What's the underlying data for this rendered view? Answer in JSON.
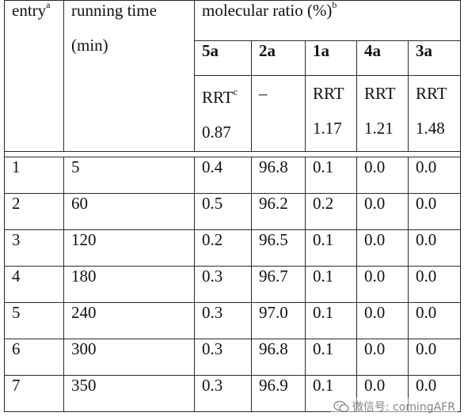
{
  "header": {
    "entry": "entry",
    "entry_sup": "a",
    "running_time_line1": "running time",
    "running_time_line2": "(min)",
    "molecular_ratio": "molecular ratio (%)",
    "molecular_ratio_sup": "b",
    "compounds": [
      "5a",
      "2a",
      "1a",
      "4a",
      "3a"
    ],
    "rrt_col1_line1": "RRT",
    "rrt_col1_sup": "c",
    "rrt_col1_line2": "0.87",
    "rrt_col2": "–",
    "rrt_col3_line1": "RRT",
    "rrt_col3_line2": "1.17",
    "rrt_col4_line1": "RRT",
    "rrt_col4_line2": "1.21",
    "rrt_col5_line1": "RRT",
    "rrt_col5_line2": "1.48"
  },
  "rows": [
    {
      "entry": "1",
      "time": "5",
      "c5a": "0.4",
      "c2a": "96.8",
      "c1a": "0.1",
      "c4a": "0.0",
      "c3a": "0.0"
    },
    {
      "entry": "2",
      "time": "60",
      "c5a": "0.5",
      "c2a": "96.2",
      "c1a": "0.2",
      "c4a": "0.0",
      "c3a": "0.0"
    },
    {
      "entry": "3",
      "time": "120",
      "c5a": "0.2",
      "c2a": "96.5",
      "c1a": "0.1",
      "c4a": "0.0",
      "c3a": "0.0"
    },
    {
      "entry": "4",
      "time": "180",
      "c5a": "0.3",
      "c2a": "96.7",
      "c1a": "0.1",
      "c4a": "0.0",
      "c3a": "0.0"
    },
    {
      "entry": "5",
      "time": "240",
      "c5a": "0.3",
      "c2a": "97.0",
      "c1a": "0.1",
      "c4a": "0.0",
      "c3a": "0.0"
    },
    {
      "entry": "6",
      "time": "300",
      "c5a": "0.3",
      "c2a": "96.8",
      "c1a": "0.1",
      "c4a": "0.0",
      "c3a": "0.0"
    },
    {
      "entry": "7",
      "time": "350",
      "c5a": "0.3",
      "c2a": "96.9",
      "c1a": "0.1",
      "c4a": "0.0",
      "c3a": "0.0"
    }
  ],
  "watermark": {
    "text": "微信号: comingAFR",
    "icon": "wechat-icon"
  }
}
